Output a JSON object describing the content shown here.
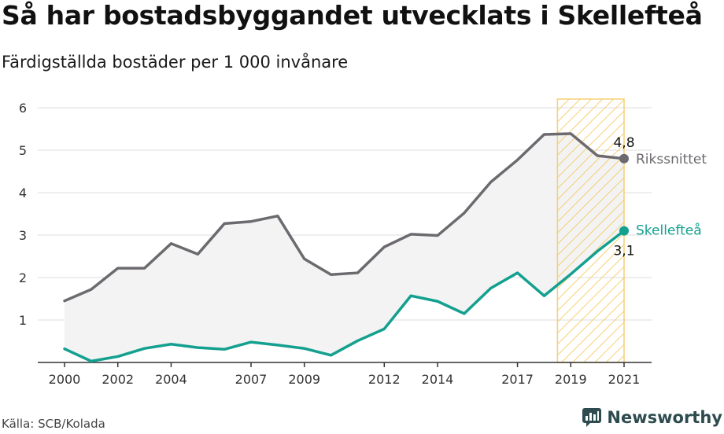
{
  "title": "Så har bostadsbyggandet utvecklats i Skellefteå",
  "subtitle": "Färdigställda bostäder per 1 000 invånare",
  "source": "Källa: SCB/Kolada",
  "brand": "Newsworthy",
  "colors": {
    "riket": "#6d6a6f",
    "skelleftea": "#13a08f",
    "band": "#f3f3f3",
    "hatch": "#f4c95d",
    "grid": "#dddddd",
    "axis": "#333333",
    "brand": "#2e4b4f"
  },
  "chart_data": {
    "type": "line",
    "x": [
      2000,
      2001,
      2002,
      2003,
      2004,
      2005,
      2006,
      2007,
      2008,
      2009,
      2010,
      2011,
      2012,
      2013,
      2014,
      2015,
      2016,
      2017,
      2018,
      2019,
      2020,
      2021
    ],
    "series": [
      {
        "name": "Rikssnittet",
        "values": [
          1.45,
          1.72,
          2.22,
          2.22,
          2.8,
          2.55,
          3.27,
          3.32,
          3.45,
          2.44,
          2.07,
          2.11,
          2.72,
          3.02,
          2.99,
          3.52,
          4.25,
          4.77,
          5.37,
          5.39,
          4.87,
          4.8
        ]
      },
      {
        "name": "Skellefteå",
        "values": [
          0.32,
          0.03,
          0.14,
          0.33,
          0.43,
          0.35,
          0.31,
          0.48,
          0.41,
          0.33,
          0.17,
          0.51,
          0.79,
          1.57,
          1.44,
          1.15,
          1.75,
          2.11,
          1.57,
          2.08,
          2.62,
          3.1
        ]
      }
    ],
    "end_labels": {
      "Rikssnittet": "4,8",
      "Skellefteå": "3,1"
    },
    "x_ticks": [
      2000,
      2002,
      2004,
      2007,
      2009,
      2012,
      2014,
      2017,
      2019,
      2021
    ],
    "y_ticks": [
      1,
      2,
      3,
      4,
      5,
      6
    ],
    "ylim": [
      0,
      6.2
    ],
    "xlim": [
      1999,
      2022
    ],
    "highlight_range": [
      2018.5,
      2021
    ],
    "grid": true
  }
}
